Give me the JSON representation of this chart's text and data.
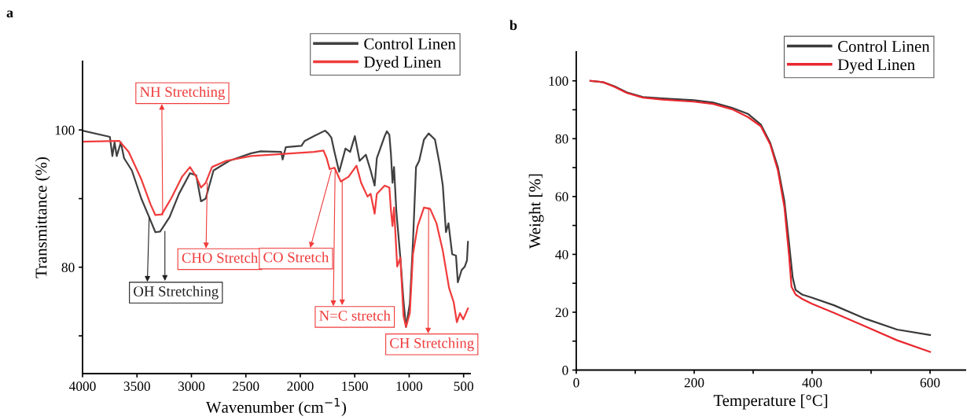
{
  "chart_data": [
    {
      "type": "line",
      "title": "a",
      "xlabel": "Wavenumber (cm$^{−1}$)",
      "ylabel": "Transmittance (%)",
      "xlim": [
        4000,
        440
      ],
      "ylim": [
        64.5,
        110
      ],
      "xticks": [
        4000,
        3500,
        3000,
        2500,
        2000,
        1500,
        1000,
        500
      ],
      "yticks": [
        {
          "value": 70,
          "label": null
        },
        80,
        {
          "value": 90,
          "label": null
        },
        100
      ],
      "legend": "top right",
      "series": [
        {
          "name": "Control Linen",
          "color": "#404040",
          "x": [
            4000,
            3749,
            3726,
            3706,
            3686,
            3648,
            3619,
            3547,
            3460,
            3388,
            3331,
            3287,
            3201,
            3114,
            3013,
            2956,
            2912,
            2869,
            2797,
            2653,
            2451,
            2364,
            2176,
            2162,
            2133,
            1989,
            1960,
            1874,
            1773,
            1744,
            1715,
            1686,
            1643,
            1600,
            1585,
            1542,
            1499,
            1455,
            1398,
            1354,
            1317,
            1297,
            1225,
            1205,
            1182,
            1167,
            1153,
            1139,
            1118,
            1081,
            1052,
            1029,
            994,
            965,
            937,
            908,
            864,
            821,
            763,
            720,
            691,
            662,
            639,
            605,
            570,
            553,
            518,
            489,
            469,
            460
          ],
          "values": [
            99.9,
            99.0,
            96.2,
            98.2,
            96.2,
            98.2,
            95.9,
            94.1,
            90.0,
            87.3,
            85.1,
            85.2,
            87.3,
            90.7,
            93.7,
            93.4,
            89.6,
            90.0,
            94.1,
            95.5,
            96.6,
            96.9,
            96.8,
            95.7,
            97.5,
            97.7,
            98.4,
            99.1,
            99.9,
            99.5,
            98.9,
            96.8,
            93.9,
            96.4,
            97.3,
            96.8,
            99.1,
            95.5,
            96.4,
            94.1,
            91.9,
            95.9,
            99.1,
            99.8,
            99.3,
            96.4,
            92.3,
            94.6,
            88.2,
            81.4,
            75.1,
            71.3,
            74.7,
            83.7,
            94.6,
            95.5,
            98.6,
            99.5,
            98.6,
            95.0,
            91.9,
            85.1,
            86.4,
            81.9,
            81.7,
            77.8,
            79.6,
            80.1,
            81.0,
            83.7
          ]
        },
        {
          "name": "Dyed Linen",
          "color": "#f03c3c",
          "x": [
            4000,
            3662,
            3576,
            3460,
            3374,
            3331,
            3273,
            3187,
            3085,
            3013,
            2956,
            2912,
            2869,
            2811,
            2681,
            2451,
            1874,
            1787,
            1758,
            1730,
            1686,
            1628,
            1556,
            1484,
            1441,
            1383,
            1354,
            1317,
            1297,
            1225,
            1182,
            1167,
            1153,
            1139,
            1110,
            1081,
            1052,
            1029,
            994,
            965,
            922,
            864,
            807,
            749,
            691,
            634,
            591,
            562,
            533,
            504,
            460
          ],
          "values": [
            98.3,
            98.4,
            96.8,
            92.8,
            89.1,
            87.6,
            87.7,
            90.0,
            93.2,
            94.6,
            93.2,
            91.6,
            92.3,
            94.6,
            95.5,
            96.2,
            96.8,
            97.0,
            95.9,
            94.3,
            94.5,
            92.5,
            93.2,
            94.8,
            92.3,
            90.3,
            90.7,
            87.8,
            90.7,
            91.9,
            91.6,
            88.2,
            86.0,
            88.7,
            80.1,
            81.4,
            72.9,
            71.3,
            73.3,
            81.9,
            86.0,
            88.7,
            88.5,
            86.4,
            82.4,
            77.0,
            74.9,
            72.0,
            73.3,
            72.4,
            74.0
          ]
        }
      ],
      "annotations": [
        {
          "text": "NH Stretching",
          "x": 3264,
          "y": 87.6
        },
        {
          "text": "OH Stretching",
          "x": 3388,
          "y": 87.3
        },
        {
          "text": "CHO Stretch",
          "x": 2855,
          "y": 92.3
        },
        {
          "text": "CO Stretch",
          "x": 1715,
          "y": 94.1
        },
        {
          "text": "N=C stretch",
          "x": 1680,
          "y": 94.3
        },
        {
          "text": "CH Stretching",
          "x": 821,
          "y": 88.7
        }
      ]
    },
    {
      "type": "line",
      "title": "b",
      "xlabel": "Temperature [°C]",
      "ylabel": "Weight [%]",
      "xlim": [
        0,
        660
      ],
      "ylim": [
        0,
        110
      ],
      "xticks": [
        0,
        {
          "value": 100,
          "label": null
        },
        200,
        {
          "value": 300,
          "label": null
        },
        400,
        {
          "value": 500,
          "label": null
        },
        600
      ],
      "yticks": [
        0,
        {
          "value": 10,
          "label": null
        },
        20,
        {
          "value": 30,
          "label": null
        },
        40,
        {
          "value": 50,
          "label": null
        },
        60,
        {
          "value": 70,
          "label": null
        },
        80,
        {
          "value": 90,
          "label": null
        },
        100
      ],
      "legend": "top right",
      "series": [
        {
          "name": "Control Linen",
          "color": "#3a3a3a",
          "x": [
            24,
            46,
            65,
            86,
            113,
            146,
            199,
            232,
            264,
            291,
            313,
            329,
            342,
            353,
            361,
            367,
            372,
            383,
            399,
            437,
            491,
            544,
            600
          ],
          "values": [
            100,
            99.5,
            98.1,
            96,
            94.4,
            93.9,
            93.3,
            92.5,
            90.7,
            88.6,
            84.9,
            78.5,
            70.1,
            58.4,
            43.6,
            32,
            27.7,
            26.1,
            25.1,
            22.4,
            17.7,
            14.0,
            12.1
          ]
        },
        {
          "name": "Dyed Linen",
          "color": "#e8282f",
          "x": [
            24,
            46,
            65,
            86,
            113,
            146,
            199,
            232,
            264,
            291,
            313,
            329,
            342,
            353,
            361,
            365,
            372,
            383,
            399,
            437,
            491,
            544,
            600
          ],
          "values": [
            100,
            99.5,
            97.9,
            95.8,
            94.2,
            93.5,
            92.8,
            92.0,
            90.2,
            87.5,
            84.3,
            78.0,
            69.0,
            56.3,
            39.4,
            28.8,
            26.1,
            24.6,
            23.0,
            19.8,
            15.0,
            10.3,
            6.3
          ]
        }
      ]
    }
  ]
}
